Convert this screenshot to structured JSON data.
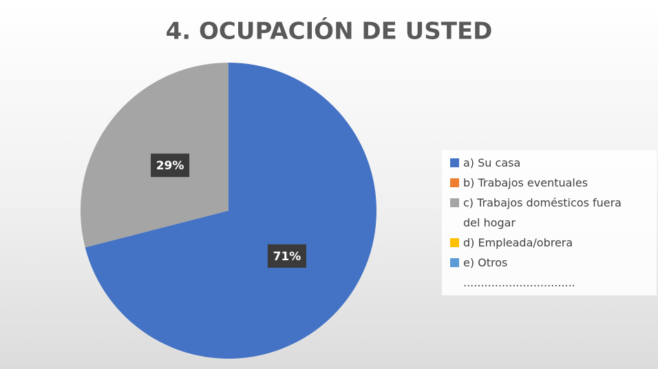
{
  "chart_data": {
    "type": "pie",
    "title": "4. OCUPACIÓN DE USTED",
    "categories": [
      "a) Su casa",
      "b) Trabajos eventuales",
      "c) Trabajos domésticos fuera del hogar",
      "d) Empleada/obrera",
      "e) Otros ................................"
    ],
    "values": [
      71,
      0,
      29,
      0,
      0
    ],
    "value_labels": [
      "71%",
      null,
      "29%",
      null,
      null
    ],
    "colors": [
      "#4472c4",
      "#ed7d31",
      "#a5a5a5",
      "#ffc000",
      "#5b9bd5"
    ],
    "legend": "right"
  }
}
